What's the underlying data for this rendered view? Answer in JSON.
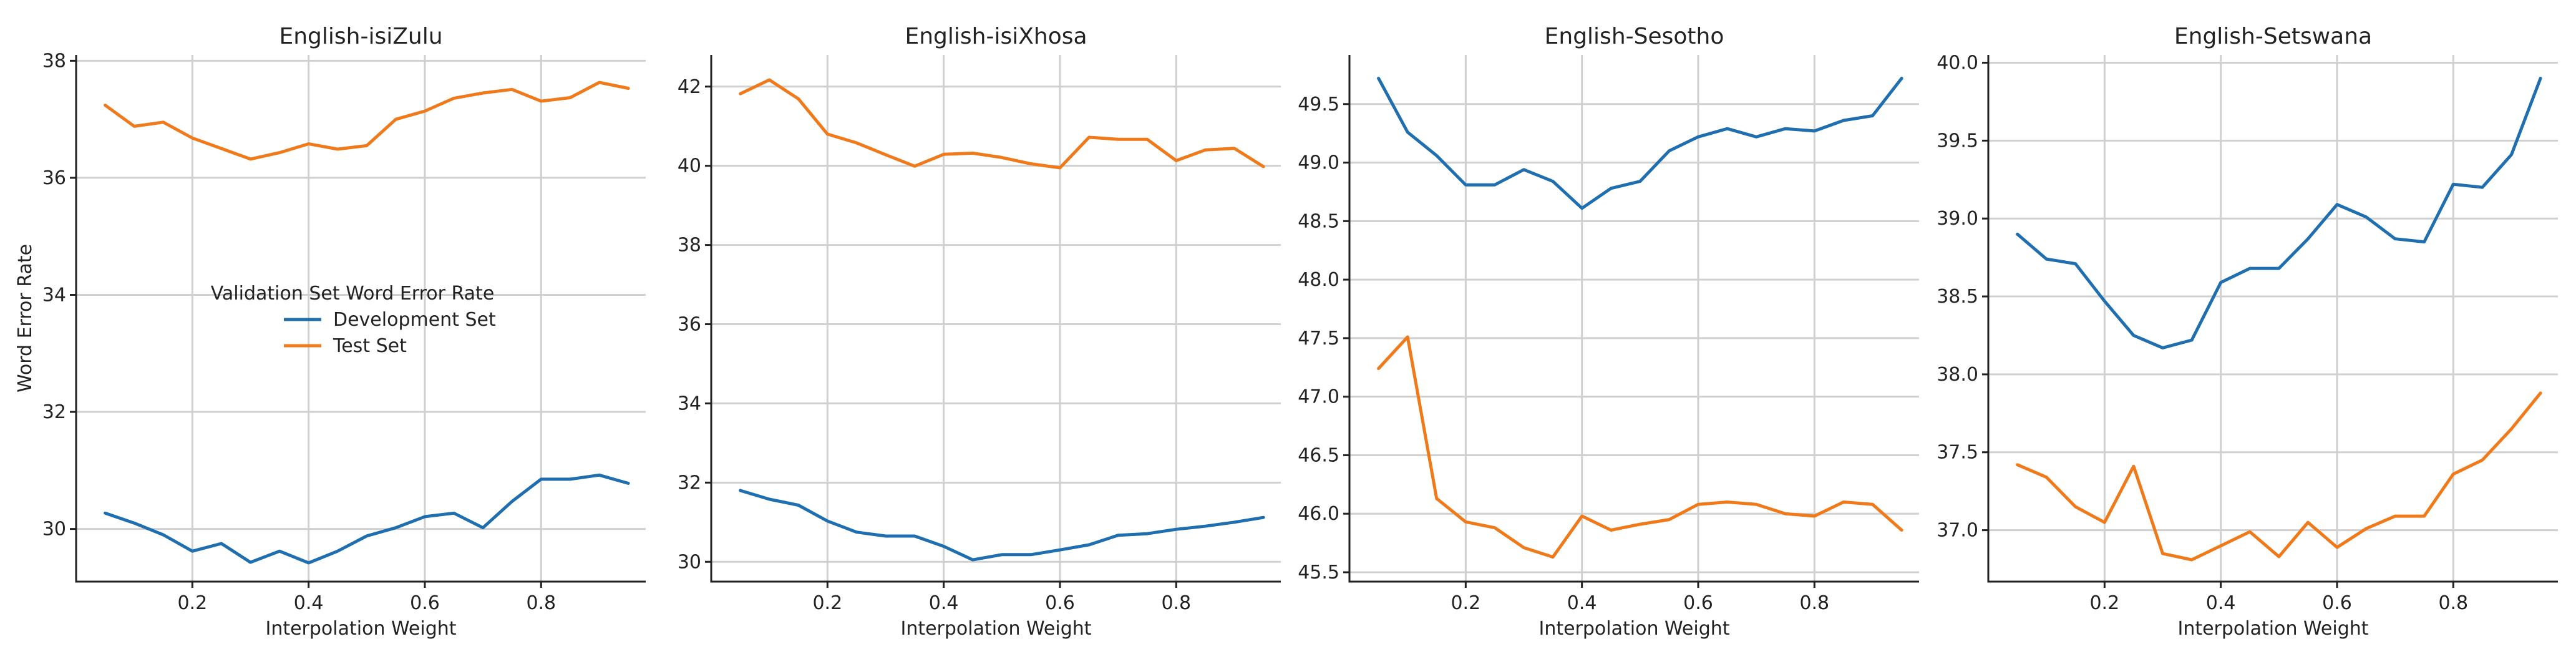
{
  "colors": {
    "development": "#1f6fb0",
    "test": "#f07a1a"
  },
  "legend": {
    "title": "Validation Set Word Error Rate",
    "entries": [
      "Development Set",
      "Test Set"
    ]
  },
  "chart_data": [
    {
      "type": "line",
      "title": "English-isiZulu",
      "xlabel": "Interpolation Weight",
      "ylabel": "Word Error Rate",
      "xlim": [
        0.0,
        0.98
      ],
      "ylim": [
        29.1,
        38.1
      ],
      "xticks": [
        0.2,
        0.4,
        0.6,
        0.8
      ],
      "xtick_labels": [
        "0.2",
        "0.4",
        "0.6",
        "0.8"
      ],
      "yticks": [
        30,
        32,
        34,
        36,
        38
      ],
      "ytick_labels": [
        "30",
        "32",
        "34",
        "36",
        "38"
      ],
      "x": [
        0.05,
        0.1,
        0.15,
        0.2,
        0.25,
        0.3,
        0.35,
        0.4,
        0.45,
        0.5,
        0.55,
        0.6,
        0.65,
        0.7,
        0.75,
        0.8,
        0.85,
        0.9,
        0.95
      ],
      "series": [
        {
          "name": "Development Set",
          "values": [
            30.27,
            30.1,
            29.9,
            29.62,
            29.75,
            29.43,
            29.62,
            29.42,
            29.62,
            29.88,
            30.02,
            30.21,
            30.27,
            30.02,
            30.47,
            30.85,
            30.85,
            30.92,
            30.78
          ]
        },
        {
          "name": "Test Set",
          "values": [
            37.24,
            36.88,
            36.95,
            36.68,
            36.5,
            36.32,
            36.43,
            36.58,
            36.49,
            36.55,
            37.0,
            37.14,
            37.36,
            37.45,
            37.51,
            37.31,
            37.37,
            37.63,
            37.53
          ]
        }
      ],
      "legend": true
    },
    {
      "type": "line",
      "title": "English-isiXhosa",
      "xlabel": "Interpolation Weight",
      "ylabel": "",
      "xlim": [
        0.0,
        0.98
      ],
      "ylim": [
        29.5,
        42.8
      ],
      "xticks": [
        0.2,
        0.4,
        0.6,
        0.8
      ],
      "xtick_labels": [
        "0.2",
        "0.4",
        "0.6",
        "0.8"
      ],
      "yticks": [
        30,
        32,
        34,
        36,
        38,
        40,
        42
      ],
      "ytick_labels": [
        "30",
        "32",
        "34",
        "36",
        "38",
        "40",
        "42"
      ],
      "x": [
        0.05,
        0.1,
        0.15,
        0.2,
        0.25,
        0.3,
        0.35,
        0.4,
        0.45,
        0.5,
        0.55,
        0.6,
        0.65,
        0.7,
        0.75,
        0.8,
        0.85,
        0.9,
        0.95
      ],
      "series": [
        {
          "name": "Development Set",
          "values": [
            31.8,
            31.58,
            31.43,
            31.03,
            30.75,
            30.65,
            30.65,
            30.39,
            30.05,
            30.18,
            30.18,
            30.3,
            30.43,
            30.67,
            30.71,
            30.82,
            30.9,
            31.0,
            31.12
          ]
        },
        {
          "name": "Test Set",
          "values": [
            41.82,
            42.17,
            41.69,
            40.8,
            40.58,
            40.28,
            39.99,
            40.29,
            40.32,
            40.21,
            40.05,
            39.95,
            40.72,
            40.67,
            40.67,
            40.13,
            40.4,
            40.44,
            39.98
          ]
        }
      ],
      "legend": false
    },
    {
      "type": "line",
      "title": "English-Sesotho",
      "xlabel": "Interpolation Weight",
      "ylabel": "",
      "xlim": [
        0.0,
        0.98
      ],
      "ylim": [
        45.42,
        49.92
      ],
      "xticks": [
        0.2,
        0.4,
        0.6,
        0.8
      ],
      "xtick_labels": [
        "0.2",
        "0.4",
        "0.6",
        "0.8"
      ],
      "yticks": [
        45.5,
        46.0,
        46.5,
        47.0,
        47.5,
        48.0,
        48.5,
        49.0,
        49.5
      ],
      "ytick_labels": [
        "45.5",
        "46.0",
        "46.5",
        "47.0",
        "47.5",
        "48.0",
        "48.5",
        "49.0",
        "49.5"
      ],
      "x": [
        0.05,
        0.1,
        0.15,
        0.2,
        0.25,
        0.3,
        0.35,
        0.4,
        0.45,
        0.5,
        0.55,
        0.6,
        0.65,
        0.7,
        0.75,
        0.8,
        0.85,
        0.9,
        0.95
      ],
      "series": [
        {
          "name": "Development Set",
          "values": [
            49.72,
            49.26,
            49.06,
            48.81,
            48.81,
            48.94,
            48.84,
            48.61,
            48.78,
            48.84,
            49.1,
            49.22,
            49.29,
            49.22,
            49.29,
            49.27,
            49.36,
            49.4,
            49.72
          ]
        },
        {
          "name": "Test Set",
          "values": [
            47.24,
            47.51,
            46.13,
            45.93,
            45.88,
            45.71,
            45.63,
            45.98,
            45.86,
            45.91,
            45.95,
            46.08,
            46.1,
            46.08,
            46.0,
            45.98,
            46.1,
            46.08,
            45.86
          ]
        }
      ],
      "legend": false
    },
    {
      "type": "line",
      "title": "English-Setswana",
      "xlabel": "Interpolation Weight",
      "ylabel": "",
      "xlim": [
        0.0,
        0.98
      ],
      "ylim": [
        36.67,
        40.05
      ],
      "xticks": [
        0.2,
        0.4,
        0.6,
        0.8
      ],
      "xtick_labels": [
        "0.2",
        "0.4",
        "0.6",
        "0.8"
      ],
      "yticks": [
        37.0,
        37.5,
        38.0,
        38.5,
        39.0,
        39.5,
        40.0
      ],
      "ytick_labels": [
        "37.0",
        "37.5",
        "38.0",
        "38.5",
        "39.0",
        "39.5",
        "40.0"
      ],
      "x": [
        0.05,
        0.1,
        0.15,
        0.2,
        0.25,
        0.3,
        0.35,
        0.4,
        0.45,
        0.5,
        0.55,
        0.6,
        0.65,
        0.7,
        0.75,
        0.8,
        0.85,
        0.9,
        0.95
      ],
      "series": [
        {
          "name": "Development Set",
          "values": [
            38.9,
            38.74,
            38.71,
            38.47,
            38.25,
            38.17,
            38.22,
            38.59,
            38.68,
            38.68,
            38.87,
            39.09,
            39.01,
            38.87,
            38.85,
            39.22,
            39.2,
            39.41,
            39.9
          ]
        },
        {
          "name": "Test Set",
          "values": [
            37.42,
            37.34,
            37.15,
            37.05,
            37.41,
            36.85,
            36.81,
            36.9,
            36.99,
            36.83,
            37.05,
            36.89,
            37.01,
            37.09,
            37.09,
            37.36,
            37.45,
            37.65,
            37.88
          ]
        }
      ],
      "legend": false
    }
  ]
}
